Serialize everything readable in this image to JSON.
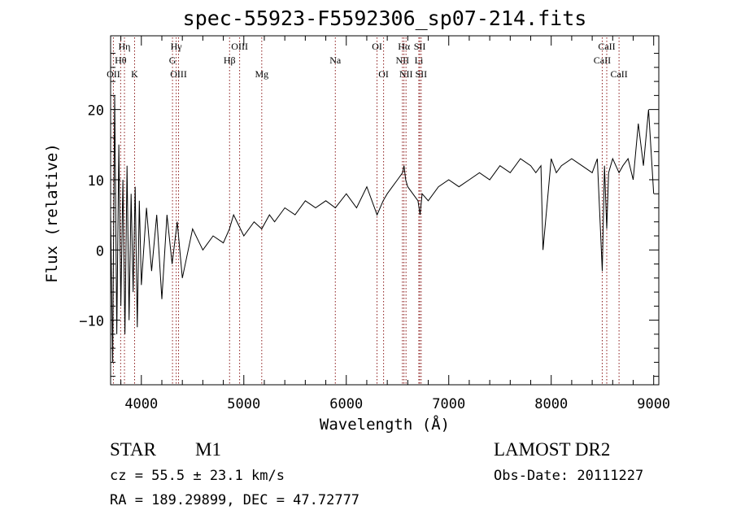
{
  "chart_data": {
    "type": "line",
    "title": "spec-55923-F5592306_sp07-214.fits",
    "xlabel": "Wavelength (Å)",
    "ylabel": "Flux (relative)",
    "xlim": [
      3700,
      9050
    ],
    "ylim": [
      -19.2,
      30.5
    ],
    "xticks": [
      4000,
      5000,
      6000,
      7000,
      8000,
      9000
    ],
    "xtick_labels": [
      "4000",
      "5000",
      "6000",
      "7000",
      "8000",
      "9000"
    ],
    "yticks": [
      -10,
      0,
      10,
      20
    ],
    "ytick_labels": [
      "−10",
      "0",
      "10",
      "20"
    ],
    "grid": false,
    "line_color": "#000000",
    "marker_color": "#8b1a1a",
    "series": [
      {
        "x": [
          3700,
          3720,
          3740,
          3760,
          3780,
          3800,
          3820,
          3840,
          3860,
          3880,
          3900,
          3920,
          3940,
          3960,
          3980,
          4000,
          4050,
          4100,
          4150,
          4200,
          4250,
          4300,
          4350,
          4400,
          4500,
          4600,
          4700,
          4800,
          4860,
          4900,
          5000,
          5100,
          5175,
          5250,
          5300,
          5400,
          5500,
          5600,
          5700,
          5800,
          5893,
          6000,
          6100,
          6200,
          6300,
          6360,
          6400,
          6450,
          6500,
          6550,
          6563,
          6580,
          6600,
          6650,
          6700,
          6720,
          6740,
          6800,
          6900,
          7000,
          7100,
          7200,
          7300,
          7400,
          7500,
          7600,
          7700,
          7800,
          7850,
          7900,
          7920,
          8000,
          8050,
          8100,
          8200,
          8300,
          8400,
          8450,
          8498,
          8520,
          8542,
          8560,
          8600,
          8662,
          8700,
          8750,
          8800,
          8850,
          8900,
          8950,
          9000
        ],
        "y": [
          5,
          -16,
          22,
          -12,
          15,
          -8,
          10,
          -12,
          12,
          -10,
          8,
          -6,
          9,
          -11,
          7,
          -5,
          6,
          -3,
          5,
          -7,
          5,
          -2,
          4,
          -4,
          3,
          0,
          2,
          1,
          3,
          5,
          2,
          4,
          3,
          5,
          4,
          6,
          5,
          7,
          6,
          7,
          6,
          8,
          6,
          9,
          5,
          7,
          8,
          9,
          10,
          11,
          12,
          10,
          9,
          8,
          7,
          5,
          8,
          7,
          9,
          10,
          9,
          10,
          11,
          10,
          12,
          11,
          13,
          12,
          11,
          12,
          0,
          13,
          11,
          12,
          13,
          12,
          11,
          13,
          -3,
          12,
          3,
          11,
          13,
          11,
          12,
          13,
          10,
          18,
          12,
          20,
          8
        ]
      }
    ],
    "lines": [
      {
        "label": "Hη",
        "x": 3835,
        "row": 1
      },
      {
        "label": "Hθ",
        "x": 3798,
        "row": 2
      },
      {
        "label": "OII",
        "x": 3727,
        "row": 3
      },
      {
        "label": "K",
        "x": 3934,
        "row": 3
      },
      {
        "label": "Hγ",
        "x": 4340,
        "row": 1
      },
      {
        "label": "G",
        "x": 4304,
        "row": 2
      },
      {
        "label": "OIII",
        "x": 4363,
        "row": 3
      },
      {
        "label": "OIII",
        "x": 4959,
        "row": 1
      },
      {
        "label": "Hβ",
        "x": 4861,
        "row": 2
      },
      {
        "label": "Mg",
        "x": 5175,
        "row": 3
      },
      {
        "label": "Na",
        "x": 5893,
        "row": 2
      },
      {
        "label": "OI",
        "x": 6300,
        "row": 1
      },
      {
        "label": "OI",
        "x": 6364,
        "row": 3
      },
      {
        "label": "Hα",
        "x": 6563,
        "row": 1
      },
      {
        "label": "SII",
        "x": 6717,
        "row": 1
      },
      {
        "label": "NII",
        "x": 6548,
        "row": 2
      },
      {
        "label": "Li",
        "x": 6708,
        "row": 2
      },
      {
        "label": "NII",
        "x": 6583,
        "row": 3
      },
      {
        "label": "SII",
        "x": 6731,
        "row": 3
      },
      {
        "label": "CaII",
        "x": 8542,
        "row": 1
      },
      {
        "label": "CaII",
        "x": 8498,
        "row": 2
      },
      {
        "label": "CaII",
        "x": 8662,
        "row": 3
      }
    ]
  },
  "info": {
    "class_label": "STAR",
    "subclass_label": "M1",
    "survey_label": "LAMOST DR2",
    "velocity_text": "cz = 55.5 ± 23.1 km/s",
    "obs_date_text": "Obs-Date: 20111227",
    "coords_text": "RA = 189.29899, DEC =  47.72777"
  }
}
